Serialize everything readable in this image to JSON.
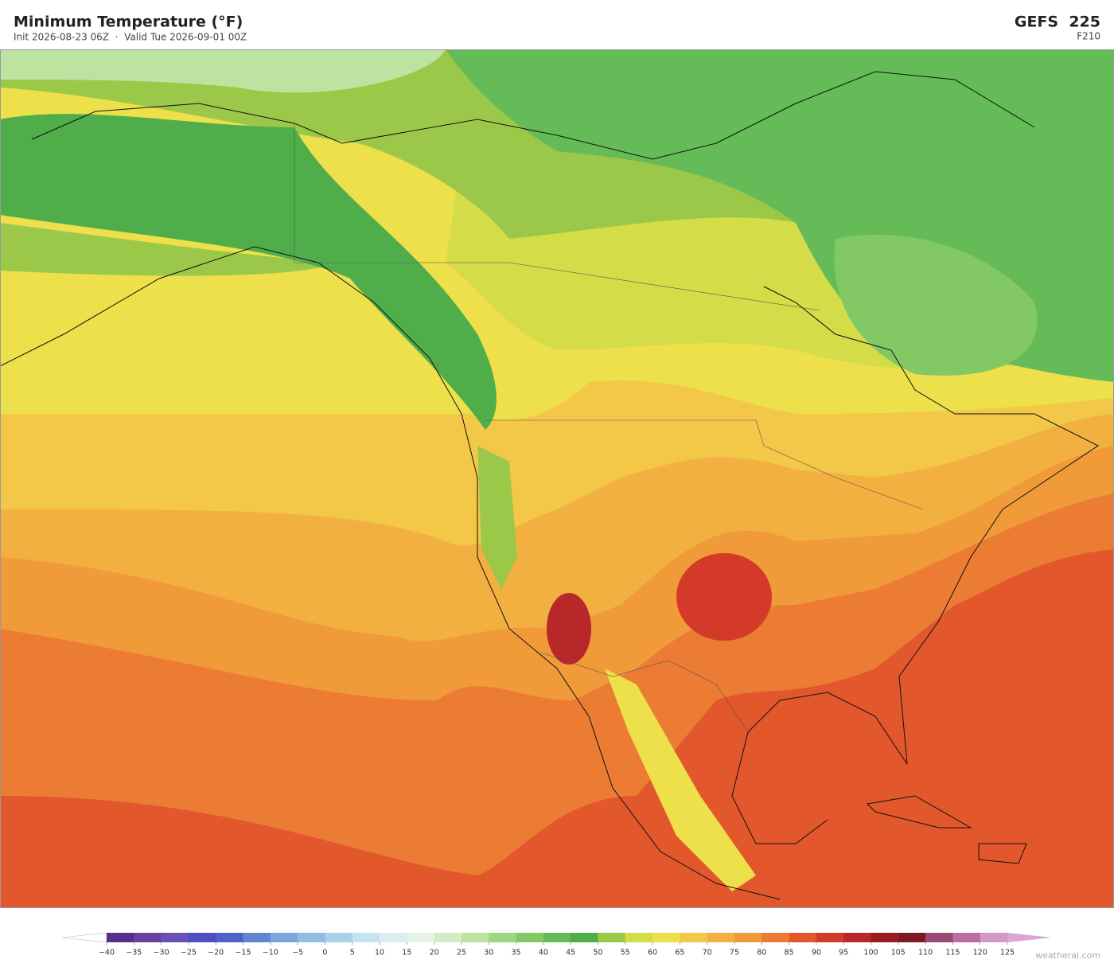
{
  "header": {
    "title": "Minimum Temperature  (°F)",
    "subtitle": "Init 2026-08-23 06Z  ·  Valid Tue 2026-09-01 00Z",
    "model": "GEFS  225",
    "forecast_hour": "F210"
  },
  "colorbar": {
    "ticks": [
      {
        "value": -40,
        "label": "−40"
      },
      {
        "value": -35,
        "label": "−35"
      },
      {
        "value": -30,
        "label": "−30"
      },
      {
        "value": -25,
        "label": "−25"
      },
      {
        "value": -20,
        "label": "−20"
      },
      {
        "value": -15,
        "label": "−15"
      },
      {
        "value": -10,
        "label": "−10"
      },
      {
        "value": -5,
        "label": "−5"
      },
      0,
      5,
      10,
      15,
      20,
      25,
      30,
      35,
      40,
      45,
      50,
      55,
      60,
      65,
      70,
      75,
      80,
      85,
      90,
      95,
      100,
      105,
      110,
      115,
      120,
      125
    ],
    "colors": [
      "#5b2c8f",
      "#6a3fa0",
      "#6a4fb5",
      "#4f4fc4",
      "#4e62c8",
      "#5f86d0",
      "#7aa6dc",
      "#92bde2",
      "#a8d2ea",
      "#c4e2ef",
      "#dcedf2",
      "#e6f3e6",
      "#d4ecc6",
      "#bde3a0",
      "#9fd681",
      "#82c865",
      "#65bb57",
      "#4fae4a",
      "#9cc84a",
      "#d4dc48",
      "#ede04a",
      "#f3c848",
      "#f2b040",
      "#f09a3a",
      "#ec7c34",
      "#e2572c",
      "#d43a28",
      "#b8282a",
      "#9a1c22",
      "#7c1a1f",
      "#9a4a74",
      "#bc6ea4",
      "#d498c8"
    ],
    "under_color": "#ffffff",
    "over_color": "#dba6d6"
  },
  "footer": {
    "credit": "weatherai.com"
  }
}
